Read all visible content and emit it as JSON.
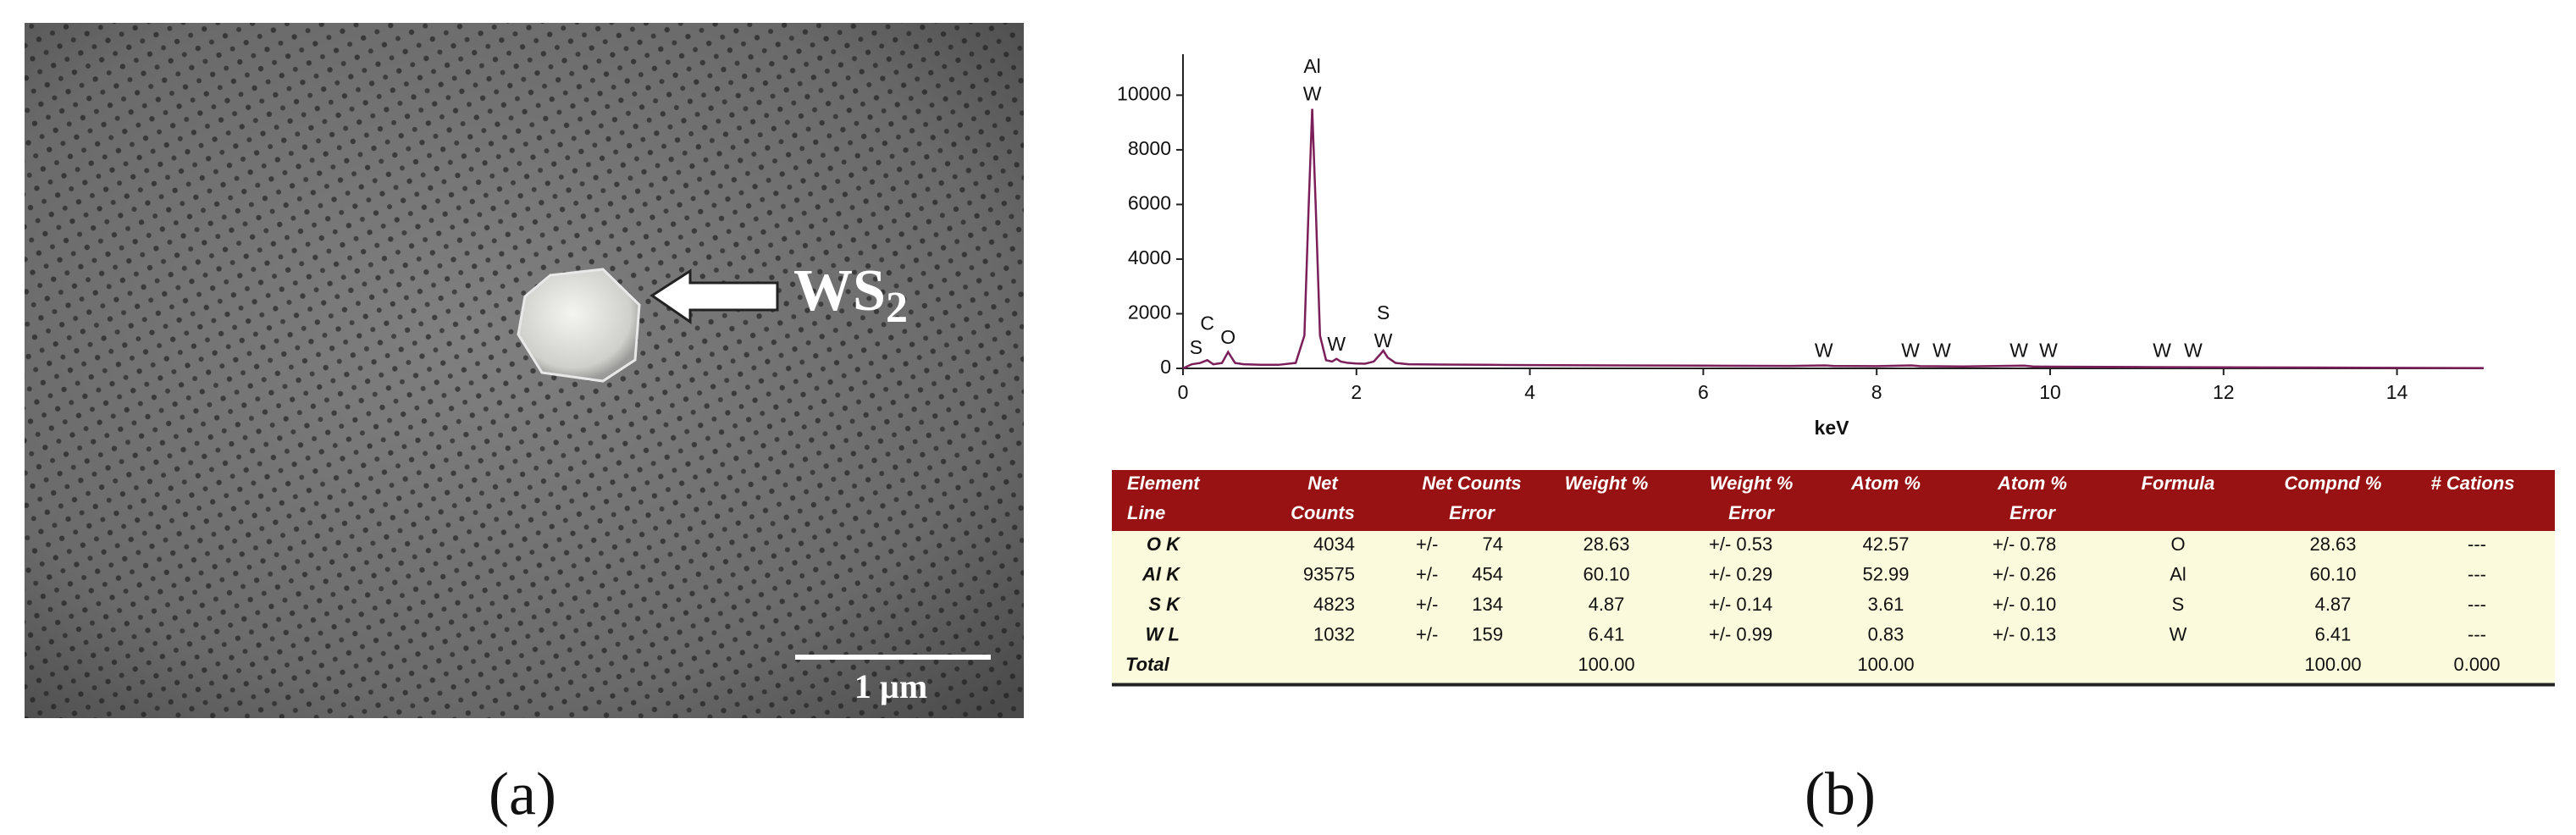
{
  "panel_a": {
    "label": "(a)",
    "annotation": {
      "text": "WS",
      "subscript": "2"
    },
    "scale_bar": "1 µm"
  },
  "panel_b": {
    "label": "(b)"
  },
  "chart_data": {
    "type": "line",
    "x_label": "keV",
    "color": "#7a1f5a",
    "x": [
      0,
      0.1,
      0.2,
      0.28,
      0.35,
      0.45,
      0.52,
      0.6,
      0.7,
      0.9,
      1.1,
      1.3,
      1.4,
      1.45,
      1.49,
      1.53,
      1.58,
      1.65,
      1.72,
      1.77,
      1.82,
      1.9,
      2.0,
      2.1,
      2.2,
      2.27,
      2.31,
      2.36,
      2.45,
      2.6,
      3,
      3.5,
      4,
      5,
      6,
      7,
      7.4,
      7.5,
      8,
      8.4,
      8.5,
      9,
      9.7,
      9.8,
      10,
      11,
      12,
      13,
      14,
      15
    ],
    "values": [
      0,
      150,
      200,
      300,
      150,
      200,
      600,
      200,
      150,
      130,
      130,
      200,
      1200,
      6000,
      9500,
      6000,
      1200,
      300,
      250,
      350,
      250,
      200,
      180,
      170,
      250,
      500,
      650,
      400,
      200,
      150,
      140,
      130,
      120,
      110,
      100,
      90,
      110,
      90,
      80,
      110,
      80,
      70,
      100,
      70,
      60,
      50,
      40,
      30,
      20,
      10
    ],
    "xlim": [
      0,
      15
    ],
    "ylim": [
      0,
      11500
    ],
    "xticks": [
      0,
      2,
      4,
      6,
      8,
      10,
      12,
      14
    ],
    "yticks": [
      0,
      2000,
      4000,
      6000,
      8000,
      10000
    ],
    "grid": false,
    "annotations": [
      {
        "text": "S",
        "x": 0.15,
        "y": 720
      },
      {
        "text": "C",
        "x": 0.28,
        "y": 1600
      },
      {
        "text": "O",
        "x": 0.52,
        "y": 1080
      },
      {
        "text": "Al",
        "x": 1.49,
        "y": 11000
      },
      {
        "text": "W",
        "x": 1.49,
        "y": 10000
      },
      {
        "text": "W",
        "x": 1.77,
        "y": 840
      },
      {
        "text": "S",
        "x": 2.31,
        "y": 1980
      },
      {
        "text": "W",
        "x": 2.31,
        "y": 960
      },
      {
        "text": "W",
        "x": 7.39,
        "y": 600
      },
      {
        "text": "W",
        "x": 8.39,
        "y": 600
      },
      {
        "text": "W",
        "x": 8.75,
        "y": 600
      },
      {
        "text": "W",
        "x": 9.64,
        "y": 600
      },
      {
        "text": "W",
        "x": 9.98,
        "y": 600
      },
      {
        "text": "W",
        "x": 11.29,
        "y": 600
      },
      {
        "text": "W",
        "x": 11.65,
        "y": 600
      }
    ]
  },
  "table": {
    "header": [
      [
        "Element",
        "Line"
      ],
      [
        "Net",
        "Counts"
      ],
      [
        "Net Counts",
        "Error"
      ],
      [
        "Weight %"
      ],
      [
        "Weight %",
        "Error"
      ],
      [
        "Atom %"
      ],
      [
        "Atom %",
        "Error"
      ],
      [
        "Formula"
      ],
      [
        "Compnd %"
      ],
      [
        "# Cations"
      ]
    ],
    "rows": [
      [
        "O K",
        "4034",
        [
          "+/-",
          "74"
        ],
        "28.63",
        "+/- 0.53",
        "42.57",
        "+/- 0.78",
        "O",
        "28.63",
        "---"
      ],
      [
        "Al K",
        "93575",
        [
          "+/-",
          "454"
        ],
        "60.10",
        "+/- 0.29",
        "52.99",
        "+/- 0.26",
        "Al",
        "60.10",
        "---"
      ],
      [
        "S K",
        "4823",
        [
          "+/-",
          "134"
        ],
        "4.87",
        "+/- 0.14",
        "3.61",
        "+/- 0.10",
        "S",
        "4.87",
        "---"
      ],
      [
        "W L",
        "1032",
        [
          "+/-",
          "159"
        ],
        "6.41",
        "+/- 0.99",
        "0.83",
        "+/- 0.13",
        "W",
        "6.41",
        "---"
      ]
    ],
    "total": {
      "label": "Total",
      "weight": "100.00",
      "atom": "100.00",
      "compnd": "100.00",
      "cations": "0.000"
    }
  }
}
